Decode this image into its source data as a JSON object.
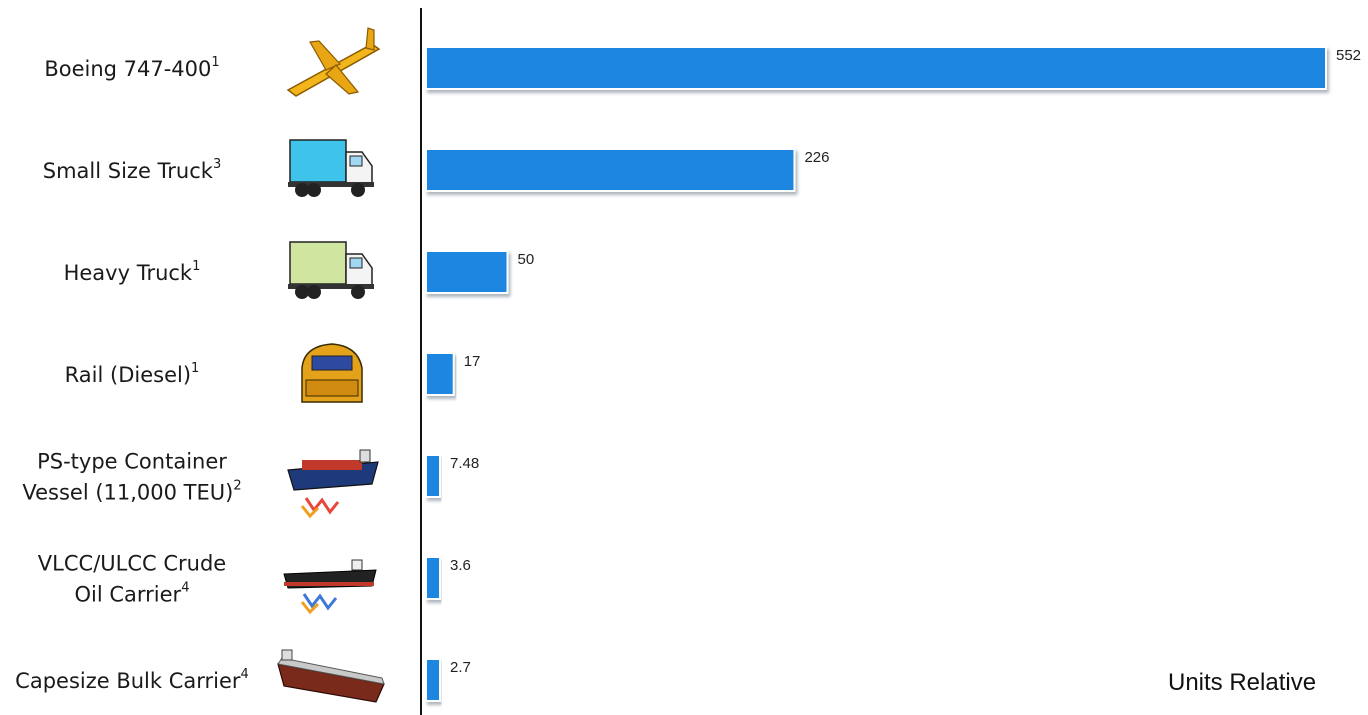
{
  "chart_data": {
    "type": "bar",
    "orientation": "horizontal",
    "categories": [
      {
        "lines": [
          "Boeing 747-400"
        ],
        "sups": [
          "1"
        ],
        "icon": "airplane-icon"
      },
      {
        "lines": [
          "Small Size Truck"
        ],
        "sups": [
          "3"
        ],
        "icon": "small-truck-icon"
      },
      {
        "lines": [
          "Heavy Truck"
        ],
        "sups": [
          "1"
        ],
        "icon": "heavy-truck-icon"
      },
      {
        "lines": [
          "Rail (Diesel)"
        ],
        "sups": [
          "1"
        ],
        "icon": "locomotive-icon"
      },
      {
        "lines": [
          "PS-type Container",
          "Vessel  (11,000 TEU)"
        ],
        "sups": [
          "",
          "2"
        ],
        "icon": "container-ship-icon"
      },
      {
        "lines": [
          "VLCC/ULCC Crude",
          "Oil Carrier"
        ],
        "sups": [
          "",
          "4"
        ],
        "icon": "tanker-ship-icon"
      },
      {
        "lines": [
          "Capesize Bulk Carrier"
        ],
        "sups": [
          "4"
        ],
        "icon": "bulk-carrier-icon"
      }
    ],
    "values": [
      552,
      226,
      50,
      17,
      7.48,
      3.6,
      2.7
    ],
    "value_labels": [
      "552",
      "226",
      "50",
      "17",
      "7.48",
      "3.6",
      "2.7"
    ],
    "xlim": [
      0,
      552
    ],
    "units_label": "Units Relative",
    "bar_color": "#1a86e0",
    "grid": false
  }
}
